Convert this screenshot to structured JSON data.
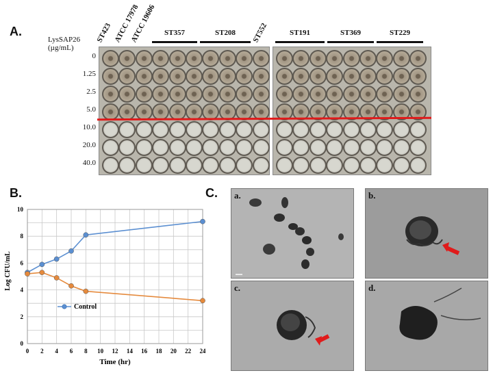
{
  "panels": {
    "a": "A.",
    "b": "B.",
    "c": "C."
  },
  "figure_a": {
    "y_title_line1": "LysSAP26",
    "y_title_line2": "(µg/mL)",
    "concentrations": [
      "0",
      "1.25",
      "2.5",
      "5.0",
      "10.0",
      "20.0",
      "40.0"
    ],
    "strains": [
      "ST423",
      "ATCC 17978",
      "ATCC 19606",
      "ST552"
    ],
    "groups": [
      "ST357",
      "ST208",
      "ST191",
      "ST369",
      "ST229"
    ],
    "cutoff_line_color": "#e01b1b",
    "turbid_rows": 4,
    "clear_rows": 3
  },
  "chart_data": {
    "type": "line",
    "x": [
      0,
      2,
      4,
      6,
      8,
      24
    ],
    "series": [
      {
        "name": "Control",
        "values": [
          5.3,
          5.9,
          6.3,
          6.9,
          8.1,
          9.1
        ],
        "color": "#5b8fd1"
      },
      {
        "values": [
          5.2,
          5.3,
          4.9,
          4.3,
          3.9,
          3.2
        ],
        "color": "#e58a3d"
      }
    ],
    "xticks": [
      0,
      2,
      4,
      6,
      8,
      10,
      12,
      14,
      16,
      18,
      20,
      22,
      24
    ],
    "yticks": [
      0,
      2,
      4,
      6,
      8,
      10
    ],
    "xlim": [
      0,
      24
    ],
    "ylim": [
      0,
      10
    ],
    "xlabel": "Time (hr)",
    "ylabel": "Log CFU/mL",
    "grid": true,
    "legend": "bottom-left"
  },
  "figure_c": {
    "sub_labels": [
      "a.",
      "b.",
      "c.",
      "d."
    ],
    "arrow_color": "#e01b1b"
  }
}
